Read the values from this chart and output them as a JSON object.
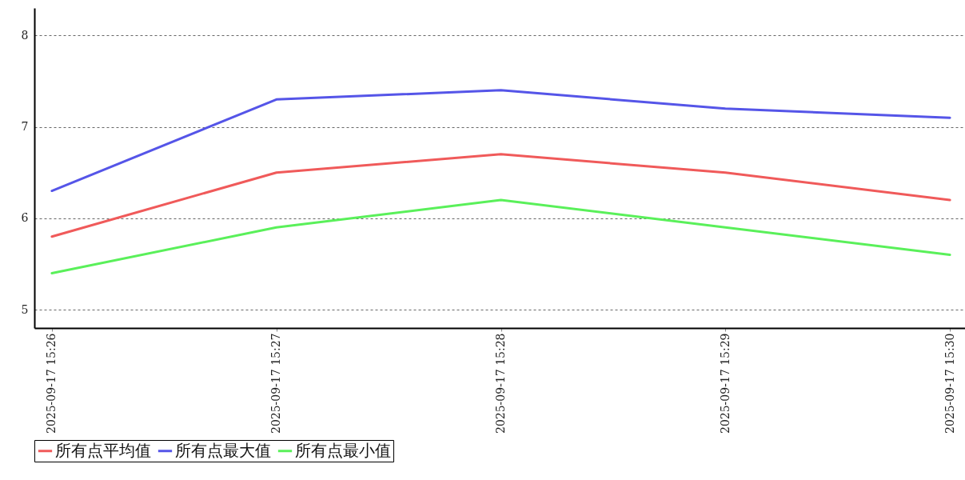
{
  "chart_data": {
    "type": "line",
    "categories": [
      "2025-09-17 15:26",
      "2025-09-17 15:27",
      "2025-09-17 15:28",
      "2025-09-17 15:29",
      "2025-09-17 15:30"
    ],
    "series": [
      {
        "name": "所有点平均值",
        "color": "#f05a5a",
        "values": [
          5.8,
          6.5,
          6.7,
          6.5,
          6.2
        ]
      },
      {
        "name": "所有点最大值",
        "color": "#5555e8",
        "values": [
          6.3,
          7.3,
          7.4,
          7.2,
          7.1
        ]
      },
      {
        "name": "所有点最小值",
        "color": "#5af05a",
        "values": [
          5.4,
          5.9,
          6.2,
          5.9,
          5.6
        ]
      }
    ],
    "ylim": [
      4.8,
      8.3
    ],
    "yticks": [
      5,
      6,
      7,
      8
    ],
    "grid": "y",
    "legend": "bottom",
    "marker": "none",
    "line_style": "solid"
  }
}
